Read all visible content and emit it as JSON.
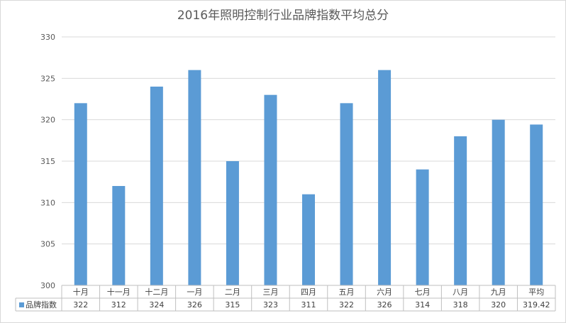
{
  "chart_data": {
    "type": "bar",
    "title": "2016年照明控制行业品牌指数平均总分",
    "categories": [
      "十月",
      "十一月",
      "十二月",
      "一月",
      "二月",
      "三月",
      "四月",
      "五月",
      "六月",
      "七月",
      "八月",
      "九月",
      "平均"
    ],
    "series": [
      {
        "name": "品牌指数",
        "values": [
          322,
          312,
          324,
          326,
          315,
          323,
          311,
          322,
          326,
          314,
          318,
          320,
          319.42
        ],
        "labels": [
          "322",
          "312",
          "324",
          "326",
          "315",
          "323",
          "311",
          "322",
          "326",
          "314",
          "318",
          "320",
          "319.42"
        ],
        "color": "#5b9bd5"
      }
    ],
    "ylim": [
      300,
      330
    ],
    "yticks": [
      "300",
      "305",
      "310",
      "315",
      "320",
      "325",
      "330"
    ],
    "grid": true,
    "legend": "data-table-left",
    "data_table": true
  }
}
